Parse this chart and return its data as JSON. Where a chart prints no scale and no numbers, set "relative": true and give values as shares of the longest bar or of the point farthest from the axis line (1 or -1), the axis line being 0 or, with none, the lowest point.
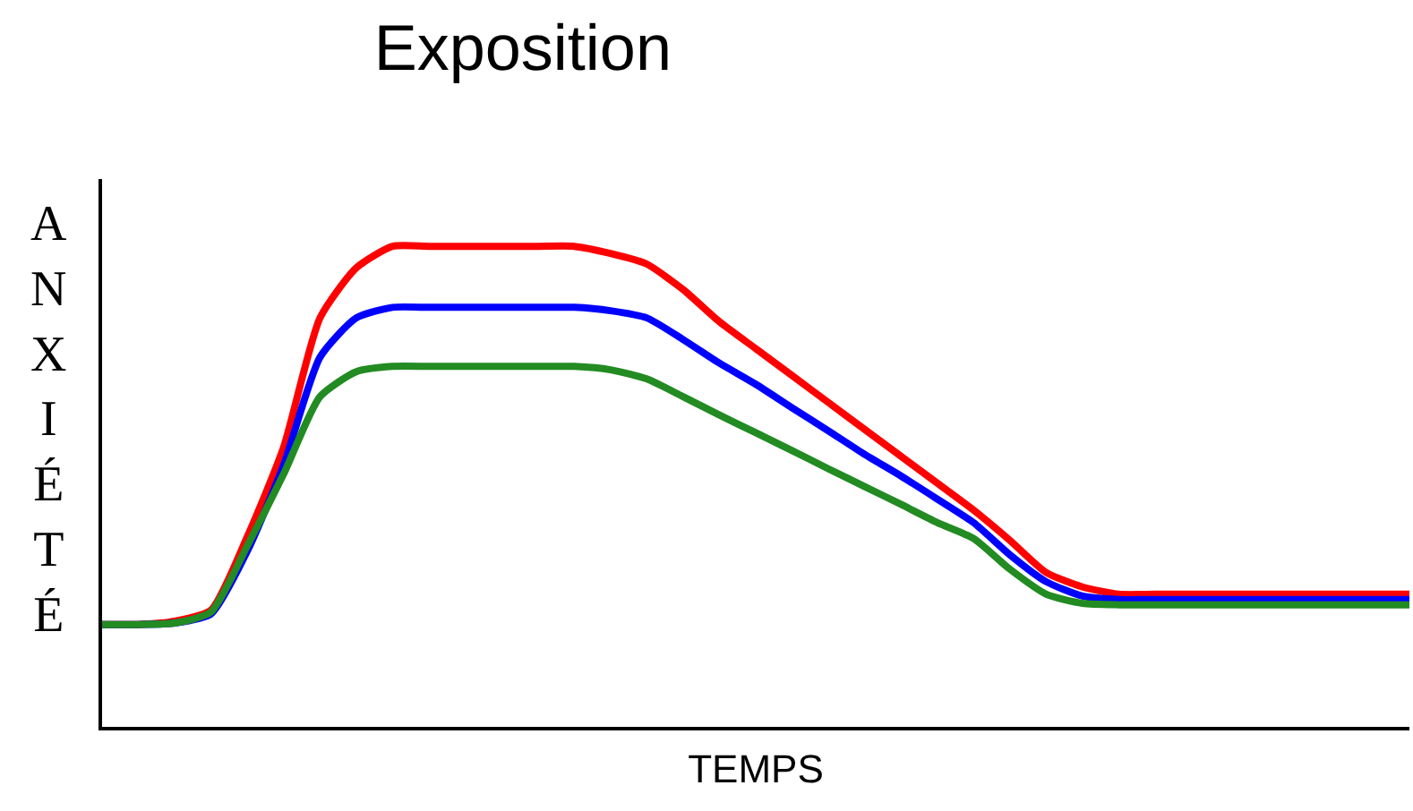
{
  "chart_data": {
    "type": "line",
    "title": "Exposition",
    "xlabel": "TEMPS",
    "ylabel": "ANXIÉTÉ",
    "relative": true,
    "marker": "none",
    "line_style": "solid",
    "categories": [
      null,
      null,
      null,
      null,
      null,
      null,
      null,
      null,
      null,
      null,
      null,
      null,
      null,
      null,
      null,
      null,
      null,
      null,
      null,
      null,
      null,
      null,
      null,
      null,
      null,
      null,
      null,
      null,
      null,
      null,
      null,
      null,
      null,
      null,
      null,
      null,
      null
    ],
    "series": [
      {
        "color": "#ff0000",
        "values": [
          0.213,
          0.213,
          0.22,
          0.243,
          0.396,
          0.582,
          0.851,
          0.955,
          1,
          1,
          1,
          1,
          1,
          1,
          0.985,
          0.963,
          0.91,
          0.843,
          0.787,
          0.731,
          0.675,
          0.619,
          0.563,
          0.507,
          0.451,
          0.388,
          0.321,
          0.291,
          0.276,
          0.276,
          0.276,
          0.276,
          0.276,
          0.276,
          0.276,
          0.276,
          0.276
        ]
      },
      {
        "color": "#0000ff",
        "values": [
          0.213,
          0.213,
          0.216,
          0.235,
          0.366,
          0.545,
          0.769,
          0.851,
          0.873,
          0.873,
          0.873,
          0.873,
          0.873,
          0.873,
          0.866,
          0.851,
          0.806,
          0.757,
          0.713,
          0.664,
          0.616,
          0.567,
          0.522,
          0.474,
          0.425,
          0.358,
          0.302,
          0.272,
          0.265,
          0.265,
          0.265,
          0.265,
          0.265,
          0.265,
          0.265,
          0.265,
          0.265
        ]
      },
      {
        "color": "#228b22",
        "values": [
          0.213,
          0.213,
          0.216,
          0.239,
          0.377,
          0.526,
          0.687,
          0.739,
          0.75,
          0.75,
          0.75,
          0.75,
          0.75,
          0.75,
          0.743,
          0.724,
          0.687,
          0.649,
          0.612,
          0.575,
          0.537,
          0.5,
          0.463,
          0.425,
          0.392,
          0.328,
          0.276,
          0.257,
          0.254,
          0.254,
          0.254,
          0.254,
          0.254,
          0.254,
          0.254,
          0.254,
          0.254
        ]
      }
    ]
  }
}
